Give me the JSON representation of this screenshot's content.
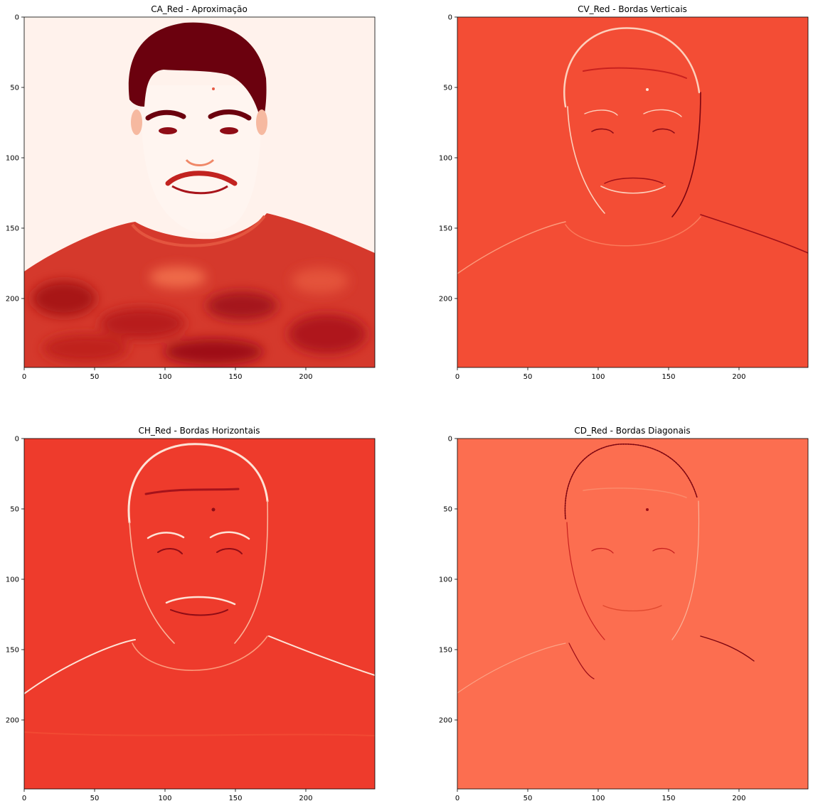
{
  "colors": {
    "ca_background": "#fff2ec",
    "ca_hair": "#6b010e",
    "ca_shirt": "#cd2a24",
    "ca_features": "#8f0c16",
    "cv_background": "#f34d35",
    "ch_background": "#ee3b2c",
    "cd_background": "#fc6e50",
    "edge_light": "#fee3d6",
    "edge_dark": "#7b0410"
  },
  "chart_data": [
    {
      "type": "heatmap",
      "title": "CA_Red - Aproximação",
      "colormap": "Reds",
      "xlim": [
        0,
        249
      ],
      "ylim": [
        249,
        0
      ],
      "xticks": [
        0,
        50,
        100,
        150,
        200
      ],
      "yticks": [
        0,
        50,
        100,
        150,
        200
      ]
    },
    {
      "type": "heatmap",
      "title": "CV_Red - Bordas Verticais",
      "colormap": "Reds",
      "xlim": [
        0,
        249
      ],
      "ylim": [
        249,
        0
      ],
      "xticks": [
        0,
        50,
        100,
        150,
        200
      ],
      "yticks": [
        0,
        50,
        100,
        150,
        200
      ]
    },
    {
      "type": "heatmap",
      "title": "CH_Red - Bordas Horizontais",
      "colormap": "Reds",
      "xlim": [
        0,
        249
      ],
      "ylim": [
        249,
        0
      ],
      "xticks": [
        0,
        50,
        100,
        150,
        200
      ],
      "yticks": [
        0,
        50,
        100,
        150,
        200
      ]
    },
    {
      "type": "heatmap",
      "title": "CD_Red - Bordas Diagonais",
      "colormap": "Reds",
      "xlim": [
        0,
        249
      ],
      "ylim": [
        249,
        0
      ],
      "xticks": [
        0,
        50,
        100,
        150,
        200
      ],
      "yticks": [
        0,
        50,
        100,
        150,
        200
      ]
    }
  ]
}
